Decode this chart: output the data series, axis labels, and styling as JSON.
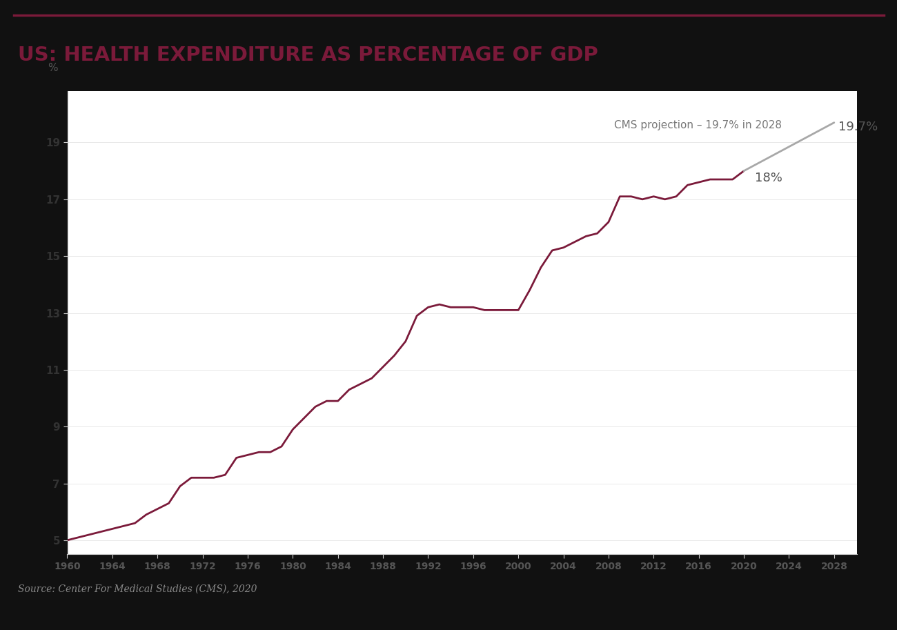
{
  "title": "US: HEALTH EXPENDITURE AS PERCENTAGE OF GDP",
  "title_color": "#7B1A3A",
  "outer_background": "#111111",
  "title_background": "#111111",
  "plot_background": "#FFFFFF",
  "source_background": "#111111",
  "source_text": "Source: Center For Medical Studies (CMS), 2020",
  "source_color": "#888888",
  "ylabel": "%",
  "annotation_18": "18%",
  "annotation_197": "19.7%",
  "annotation_projection": "CMS projection – 19.7% in 2028",
  "xlim": [
    1960,
    2030
  ],
  "ylim": [
    4.5,
    20.8
  ],
  "yticks": [
    5,
    7,
    9,
    11,
    13,
    15,
    17,
    19
  ],
  "xticks": [
    1960,
    1964,
    1968,
    1972,
    1976,
    1980,
    1984,
    1988,
    1992,
    1996,
    2000,
    2004,
    2008,
    2012,
    2016,
    2020,
    2024,
    2028
  ],
  "line_color": "#7B1A3A",
  "projection_color": "#A8A8A8",
  "top_line_color": "#7B1A3A",
  "hist_years": [
    1960,
    1961,
    1962,
    1963,
    1964,
    1965,
    1966,
    1967,
    1968,
    1969,
    1970,
    1971,
    1972,
    1973,
    1974,
    1975,
    1976,
    1977,
    1978,
    1979,
    1980,
    1981,
    1982,
    1983,
    1984,
    1985,
    1986,
    1987,
    1988,
    1989,
    1990,
    1991,
    1992,
    1993,
    1994,
    1995,
    1996,
    1997,
    1998,
    1999,
    2000,
    2001,
    2002,
    2003,
    2004,
    2005,
    2006,
    2007,
    2008,
    2009,
    2010,
    2011,
    2012,
    2013,
    2014,
    2015,
    2016,
    2017,
    2018,
    2019,
    2020
  ],
  "hist_values": [
    5.0,
    5.1,
    5.2,
    5.3,
    5.4,
    5.5,
    5.6,
    5.9,
    6.1,
    6.3,
    6.9,
    7.2,
    7.2,
    7.2,
    7.3,
    7.9,
    8.0,
    8.1,
    8.1,
    8.3,
    8.9,
    9.3,
    9.7,
    9.9,
    9.9,
    10.3,
    10.5,
    10.7,
    11.1,
    11.5,
    12.0,
    12.9,
    13.2,
    13.3,
    13.2,
    13.2,
    13.2,
    13.1,
    13.1,
    13.1,
    13.1,
    13.8,
    14.6,
    15.2,
    15.3,
    15.5,
    15.7,
    15.8,
    16.2,
    17.1,
    17.1,
    17.0,
    17.1,
    17.0,
    17.1,
    17.5,
    17.6,
    17.7,
    17.7,
    17.7,
    18.0
  ],
  "proj_years": [
    2020,
    2028
  ],
  "proj_values": [
    18.0,
    19.7
  ]
}
